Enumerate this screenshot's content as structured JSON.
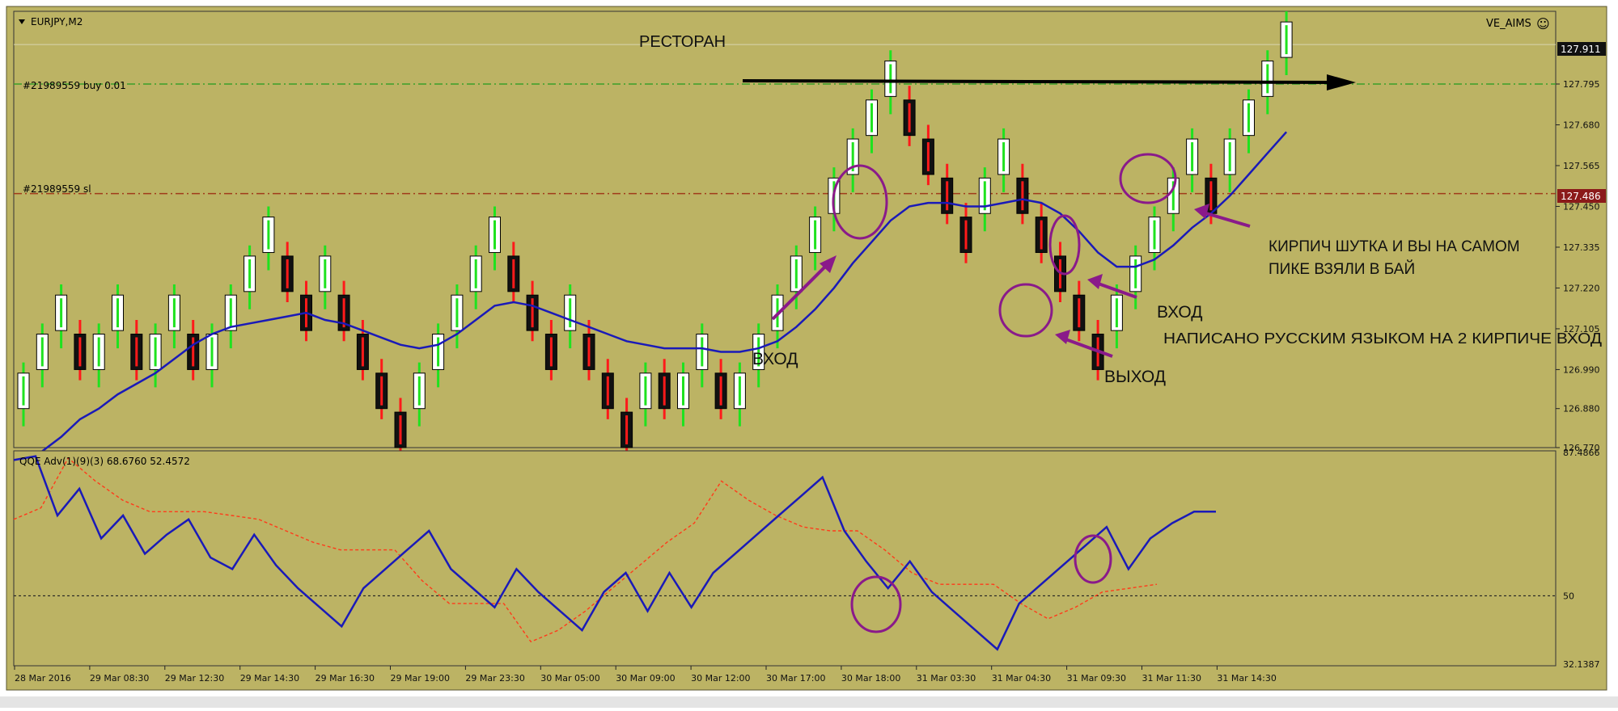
{
  "window": {
    "symbol_title": "EURJPY,M2",
    "indicator_name": "VE_AIMS",
    "smiley": "☺"
  },
  "colors": {
    "background": "#bcb364",
    "bull_wick": "#1fe21f",
    "bear_wick": "#ff1a1a",
    "body_up_fill": "#ffffff",
    "body_down_fill": "#111111",
    "ma_line": "#1a1ab8",
    "oscillator_main": "#1a1ab8",
    "oscillator_signal": "#ff3a1a",
    "buy_line": "#3aa02a",
    "sl_line": "#a03a1a",
    "annotation_purple": "#8a1a8a",
    "price_tag_sl": "#8b1a1a"
  },
  "orders": {
    "buy_label": "#21989559 buy 0.01",
    "sl_label": "#21989559 sl"
  },
  "price_tags": {
    "current": "127.911",
    "sl": "127.486"
  },
  "annotations": {
    "restaurant": "РЕСТОРАН",
    "entry_left": "ВХОД",
    "entry_right": "ВХОД",
    "exit": "ВЫХОД",
    "joke_line1": "КИРПИЧ ШУТКА  И ВЫ НА САМОМ",
    "joke_line2": "ПИКЕ ВЗЯЛИ В БАЙ",
    "written_note": "НАПИСАНО РУССКИМ  ЯЗЫКОМ  НА 2 КИРПИЧЕ ВХОД"
  },
  "chart_data": [
    {
      "type": "candlestick",
      "symbol": "EURJPY,M2",
      "y_ticks": [
        "127.795",
        "127.680",
        "127.565",
        "127.450",
        "127.335",
        "127.220",
        "127.105",
        "126.990",
        "126.880",
        "126.770"
      ],
      "ylim": [
        126.77,
        128.0
      ],
      "x_ticks": [
        "28 Mar 2016",
        "29 Mar 08:30",
        "29 Mar 12:30",
        "29 Mar 14:30",
        "29 Mar 16:30",
        "29 Mar 19:00",
        "29 Mar 23:30",
        "30 Mar 05:00",
        "30 Mar 09:00",
        "30 Mar 12:00",
        "30 Mar 17:00",
        "30 Mar 18:00",
        "31 Mar 03:30",
        "31 Mar 04:30",
        "31 Mar 09:30",
        "31 Mar 11:30",
        "31 Mar 14:30"
      ],
      "brick_size": 0.1,
      "bricks": [
        {
          "o": 126.88,
          "c": 126.98,
          "d": "up"
        },
        {
          "o": 126.99,
          "c": 127.09,
          "d": "up"
        },
        {
          "o": 127.1,
          "c": 127.2,
          "d": "up"
        },
        {
          "o": 127.09,
          "c": 126.99,
          "d": "down"
        },
        {
          "o": 126.99,
          "c": 127.09,
          "d": "up"
        },
        {
          "o": 127.1,
          "c": 127.2,
          "d": "up"
        },
        {
          "o": 127.09,
          "c": 126.99,
          "d": "down"
        },
        {
          "o": 126.99,
          "c": 127.09,
          "d": "up"
        },
        {
          "o": 127.1,
          "c": 127.2,
          "d": "up"
        },
        {
          "o": 127.09,
          "c": 126.99,
          "d": "down"
        },
        {
          "o": 126.99,
          "c": 127.09,
          "d": "up"
        },
        {
          "o": 127.1,
          "c": 127.2,
          "d": "up"
        },
        {
          "o": 127.21,
          "c": 127.31,
          "d": "up"
        },
        {
          "o": 127.32,
          "c": 127.42,
          "d": "up"
        },
        {
          "o": 127.31,
          "c": 127.21,
          "d": "down"
        },
        {
          "o": 127.2,
          "c": 127.1,
          "d": "down"
        },
        {
          "o": 127.21,
          "c": 127.31,
          "d": "up"
        },
        {
          "o": 127.2,
          "c": 127.1,
          "d": "down"
        },
        {
          "o": 127.09,
          "c": 126.99,
          "d": "down"
        },
        {
          "o": 126.98,
          "c": 126.88,
          "d": "down"
        },
        {
          "o": 126.87,
          "c": 126.77,
          "d": "down"
        },
        {
          "o": 126.88,
          "c": 126.98,
          "d": "up"
        },
        {
          "o": 126.99,
          "c": 127.09,
          "d": "up"
        },
        {
          "o": 127.1,
          "c": 127.2,
          "d": "up"
        },
        {
          "o": 127.21,
          "c": 127.31,
          "d": "up"
        },
        {
          "o": 127.32,
          "c": 127.42,
          "d": "up"
        },
        {
          "o": 127.31,
          "c": 127.21,
          "d": "down"
        },
        {
          "o": 127.2,
          "c": 127.1,
          "d": "down"
        },
        {
          "o": 127.09,
          "c": 126.99,
          "d": "down"
        },
        {
          "o": 127.1,
          "c": 127.2,
          "d": "up"
        },
        {
          "o": 127.09,
          "c": 126.99,
          "d": "down"
        },
        {
          "o": 126.98,
          "c": 126.88,
          "d": "down"
        },
        {
          "o": 126.87,
          "c": 126.77,
          "d": "down"
        },
        {
          "o": 126.88,
          "c": 126.98,
          "d": "up"
        },
        {
          "o": 126.98,
          "c": 126.88,
          "d": "down"
        },
        {
          "o": 126.88,
          "c": 126.98,
          "d": "up"
        },
        {
          "o": 126.99,
          "c": 127.09,
          "d": "up"
        },
        {
          "o": 126.98,
          "c": 126.88,
          "d": "down"
        },
        {
          "o": 126.88,
          "c": 126.98,
          "d": "up"
        },
        {
          "o": 126.99,
          "c": 127.09,
          "d": "up"
        },
        {
          "o": 127.1,
          "c": 127.2,
          "d": "up"
        },
        {
          "o": 127.21,
          "c": 127.31,
          "d": "up"
        },
        {
          "o": 127.32,
          "c": 127.42,
          "d": "up"
        },
        {
          "o": 127.43,
          "c": 127.53,
          "d": "up"
        },
        {
          "o": 127.54,
          "c": 127.64,
          "d": "up"
        },
        {
          "o": 127.65,
          "c": 127.75,
          "d": "up"
        },
        {
          "o": 127.76,
          "c": 127.86,
          "d": "up"
        },
        {
          "o": 127.75,
          "c": 127.65,
          "d": "down"
        },
        {
          "o": 127.64,
          "c": 127.54,
          "d": "down"
        },
        {
          "o": 127.53,
          "c": 127.43,
          "d": "down"
        },
        {
          "o": 127.42,
          "c": 127.32,
          "d": "down"
        },
        {
          "o": 127.43,
          "c": 127.53,
          "d": "up"
        },
        {
          "o": 127.54,
          "c": 127.64,
          "d": "up"
        },
        {
          "o": 127.53,
          "c": 127.43,
          "d": "down"
        },
        {
          "o": 127.42,
          "c": 127.32,
          "d": "down"
        },
        {
          "o": 127.31,
          "c": 127.21,
          "d": "down"
        },
        {
          "o": 127.2,
          "c": 127.1,
          "d": "down"
        },
        {
          "o": 127.09,
          "c": 126.99,
          "d": "down"
        },
        {
          "o": 127.1,
          "c": 127.2,
          "d": "up"
        },
        {
          "o": 127.21,
          "c": 127.31,
          "d": "up"
        },
        {
          "o": 127.32,
          "c": 127.42,
          "d": "up"
        },
        {
          "o": 127.43,
          "c": 127.53,
          "d": "up"
        },
        {
          "o": 127.54,
          "c": 127.64,
          "d": "up"
        },
        {
          "o": 127.53,
          "c": 127.43,
          "d": "down"
        },
        {
          "o": 127.54,
          "c": 127.64,
          "d": "up"
        },
        {
          "o": 127.65,
          "c": 127.75,
          "d": "up"
        },
        {
          "o": 127.76,
          "c": 127.86,
          "d": "up"
        },
        {
          "o": 127.87,
          "c": 127.97,
          "d": "up"
        }
      ],
      "moving_average": [
        126.72,
        126.76,
        126.8,
        126.85,
        126.88,
        126.92,
        126.95,
        126.98,
        127.02,
        127.06,
        127.09,
        127.11,
        127.12,
        127.13,
        127.14,
        127.15,
        127.13,
        127.12,
        127.1,
        127.08,
        127.06,
        127.05,
        127.06,
        127.09,
        127.13,
        127.17,
        127.18,
        127.17,
        127.15,
        127.13,
        127.11,
        127.09,
        127.07,
        127.06,
        127.05,
        127.05,
        127.05,
        127.04,
        127.04,
        127.05,
        127.07,
        127.11,
        127.16,
        127.22,
        127.29,
        127.35,
        127.41,
        127.45,
        127.46,
        127.46,
        127.45,
        127.45,
        127.46,
        127.47,
        127.46,
        127.43,
        127.38,
        127.32,
        127.28,
        127.28,
        127.3,
        127.34,
        127.39,
        127.43,
        127.48,
        127.54,
        127.6,
        127.66
      ]
    },
    {
      "type": "line",
      "title": "QQE Adv(1)(9)(3) 68.6760 52.4572",
      "y_ticks": [
        "87.4866",
        "50",
        "32.1387"
      ],
      "ylim": [
        32.1387,
        87.4866
      ],
      "level": 50,
      "series": [
        {
          "values": [
            85.5,
            86.5,
            71,
            78,
            65,
            71,
            61,
            66,
            70,
            60,
            57,
            66,
            58,
            52,
            47,
            42,
            52,
            57,
            62,
            67,
            57,
            52,
            47,
            57,
            51,
            46,
            41,
            51,
            56,
            46,
            56,
            47,
            56,
            61,
            66,
            71,
            76,
            81,
            67,
            59,
            52,
            59,
            51,
            46,
            41,
            36,
            48,
            53,
            58,
            63,
            68,
            57,
            65,
            69,
            72,
            72
          ]
        },
        {
          "values": [
            70,
            73,
            86,
            80,
            75,
            72,
            72,
            72,
            71,
            70,
            67,
            64,
            62,
            62,
            62,
            54,
            48,
            48,
            48,
            38,
            41,
            46,
            52,
            58,
            64,
            69,
            80,
            75,
            71,
            68,
            67,
            67,
            62,
            56,
            53,
            53,
            53,
            48,
            44,
            47,
            51,
            52,
            53
          ]
        }
      ]
    }
  ]
}
